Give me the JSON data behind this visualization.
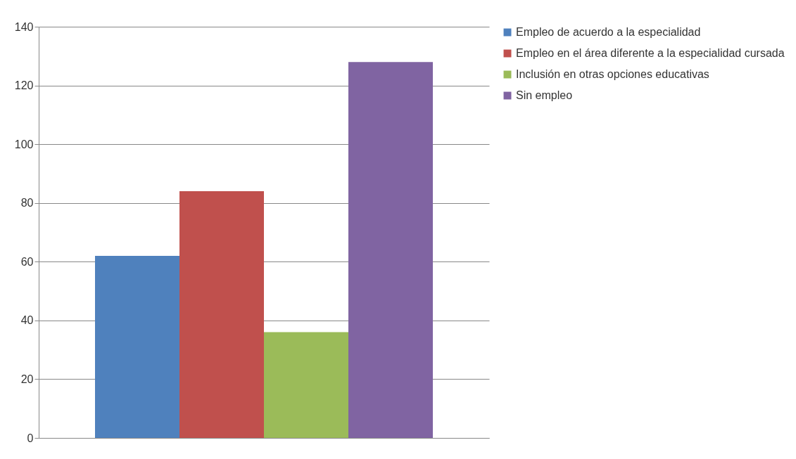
{
  "chart_data": {
    "type": "bar",
    "categories": [
      null
    ],
    "series": [
      {
        "name": "Empleo de acuerdo a la especialidad",
        "color": "#4f81bd",
        "values": [
          62
        ]
      },
      {
        "name": "Empleo en el área diferente a la especialidad cursada",
        "color": "#c0504d",
        "values": [
          84
        ]
      },
      {
        "name": "Inclusión en otras opciones educativas",
        "color": "#9bbb59",
        "values": [
          36
        ]
      },
      {
        "name": "Sin empleo",
        "color": "#8064a2",
        "values": [
          128
        ]
      }
    ],
    "ylim": [
      0,
      140
    ],
    "yticks": [
      0,
      20,
      40,
      60,
      80,
      100,
      120,
      140
    ],
    "grid": "y",
    "legend": "right",
    "tick_labels": "y"
  }
}
